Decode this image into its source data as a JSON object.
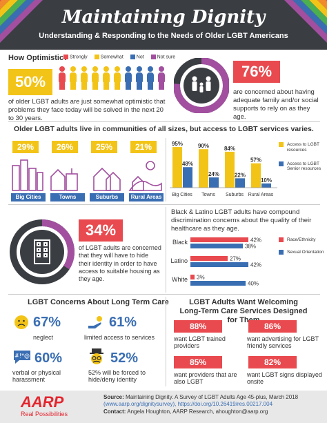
{
  "header": {
    "title": "Maintaining Dignity",
    "subtitle": "Understanding & Responding to the Needs of Older LGBT Americans"
  },
  "optimism": {
    "question": "How Optimistic?",
    "legend": [
      {
        "label": "Strongly",
        "color": "#e84a4f"
      },
      {
        "label": "Somewhat",
        "color": "#f3c418"
      },
      {
        "label": "Not",
        "color": "#3a6eb3"
      },
      {
        "label": "Not sure",
        "color": "#a24fa0"
      }
    ],
    "pct": "50%",
    "text": "of older LGBT adults are just somewhat optimistic that problems they face today will be solved in the next 20 to 30 years.",
    "people_colors": [
      "#e84a4f",
      "#f3c418",
      "#f3c418",
      "#f3c418",
      "#f3c418",
      "#f3c418",
      "#3a6eb3",
      "#3a6eb3",
      "#3a6eb3",
      "#a24fa0"
    ]
  },
  "support": {
    "pct": "76%",
    "text": "are concerned about having adequate family and/or social supports to rely on as they age.",
    "donut_value": 0.76
  },
  "communities": {
    "title": "Older LGBT adults live in communities of all sizes, but access to LGBT services varies.",
    "items": [
      {
        "pct": "29%",
        "label": "Big Cities"
      },
      {
        "pct": "26%",
        "label": "Towns"
      },
      {
        "pct": "25%",
        "label": "Suburbs"
      },
      {
        "pct": "21%",
        "label": "Rural Areas"
      }
    ]
  },
  "chart_data": [
    {
      "type": "bar",
      "categories": [
        "Big Cities",
        "Towns",
        "Suburbs",
        "Rural Areas"
      ],
      "series": [
        {
          "name": "Access to LGBT resources",
          "values": [
            95,
            90,
            84,
            57
          ],
          "color": "#f3c418"
        },
        {
          "name": "Access to LGBT Senior resources",
          "values": [
            48,
            24,
            22,
            10
          ],
          "color": "#3a6eb3"
        }
      ],
      "ylim": [
        0,
        100
      ],
      "labels": [
        "95%",
        "48%",
        "90%",
        "24%",
        "84%",
        "22%",
        "57%",
        "10%"
      ]
    },
    {
      "type": "bar",
      "orientation": "horizontal",
      "title": "Black & Latino LGBT adults have compound discrimination concerns about the quality of their healthcare as they age.",
      "categories": [
        "Black",
        "Latino",
        "White"
      ],
      "series": [
        {
          "name": "Race/Ethnicity",
          "values": [
            42,
            27,
            3
          ],
          "color": "#e84a4f"
        },
        {
          "name": "Sexual Orientation",
          "values": [
            38,
            42,
            40
          ],
          "color": "#3a6eb3"
        }
      ],
      "xlim": [
        0,
        50
      ]
    }
  ],
  "housing": {
    "pct": "34%",
    "text": "of LGBT adults are concerned that they will have to hide their identity in order to have access to suitable housing as they age.",
    "donut_value": 0.34
  },
  "longterm": {
    "title": "LGBT Concerns About Long Term Care",
    "items": [
      {
        "pct": "67%",
        "label": "neglect",
        "icon": "sad-face-icon"
      },
      {
        "pct": "61%",
        "label": "limited access to services",
        "icon": "hand-icon"
      },
      {
        "pct": "60%",
        "label": "verbal or physical harassment",
        "icon": "speech-bubble-icon"
      },
      {
        "pct": "52%",
        "label": "52% will be forced to hide/deny identity",
        "icon": "disguise-icon"
      }
    ]
  },
  "welcoming": {
    "title": "LGBT Adults Want Welcoming Long-Term Care Services Designed for Them",
    "items": [
      {
        "pct": "88%",
        "label": "want LGBT trained providers"
      },
      {
        "pct": "86%",
        "label": "want advertising for LGBT friendly services"
      },
      {
        "pct": "85%",
        "label": "want providers that are also LGBT"
      },
      {
        "pct": "82%",
        "label": "want LGBT signs displayed onsite"
      }
    ]
  },
  "footer": {
    "logo": "AARP",
    "tagline": "Real Possibilities",
    "source_label": "Source:",
    "source": "Maintaining Dignity. A Survey of LGBT Adults Age 45-plus, March 2018",
    "source_link": "(www.aarp.org/dignitysurvey), https://doi.org/10.26419/res.00217.004",
    "contact_label": "Contact:",
    "contact": "Angela Houghton, AARP Research, ahoughton@aarp.org"
  },
  "colors": {
    "red": "#e84a4f",
    "yellow": "#f3c418",
    "blue": "#3a6eb3",
    "purple": "#a24fa0",
    "dark": "#3a3d42"
  }
}
